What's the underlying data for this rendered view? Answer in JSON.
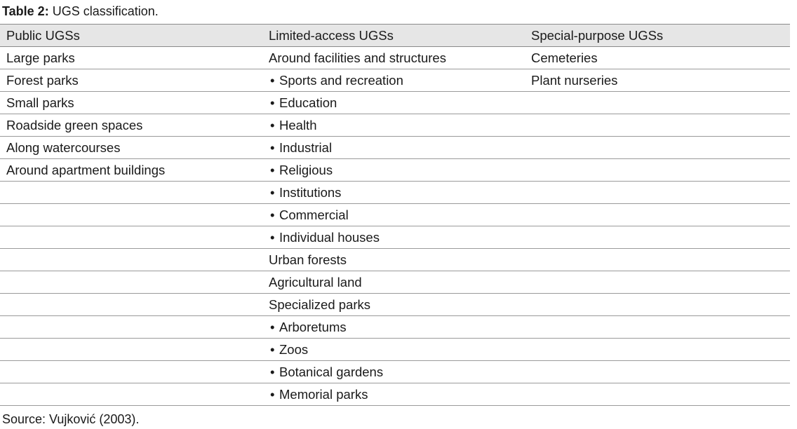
{
  "caption": {
    "label": "Table 2:",
    "text": " UGS classification."
  },
  "table": {
    "headers": [
      "Public UGSs",
      "Limited-access UGSs",
      "Special-purpose UGSs"
    ],
    "bullet_symbol": "•",
    "rows": [
      {
        "public": "Large parks",
        "limited": "Around facilities and structures",
        "limited_bullet": false,
        "special": "Cemeteries"
      },
      {
        "public": "Forest parks",
        "limited": "Sports and recreation",
        "limited_bullet": true,
        "special": "Plant nurseries"
      },
      {
        "public": "Small parks",
        "limited": "Education",
        "limited_bullet": true,
        "special": ""
      },
      {
        "public": "Roadside green spaces",
        "limited": "Health",
        "limited_bullet": true,
        "special": ""
      },
      {
        "public": "Along watercourses",
        "limited": "Industrial",
        "limited_bullet": true,
        "special": ""
      },
      {
        "public": "Around apartment buildings",
        "limited": "Religious",
        "limited_bullet": true,
        "special": ""
      },
      {
        "public": "",
        "limited": "Institutions",
        "limited_bullet": true,
        "special": ""
      },
      {
        "public": "",
        "limited": "Commercial",
        "limited_bullet": true,
        "special": ""
      },
      {
        "public": "",
        "limited": "Individual houses",
        "limited_bullet": true,
        "special": ""
      },
      {
        "public": "",
        "limited": "Urban forests",
        "limited_bullet": false,
        "special": ""
      },
      {
        "public": "",
        "limited": "Agricultural land",
        "limited_bullet": false,
        "special": ""
      },
      {
        "public": "",
        "limited": "Specialized parks",
        "limited_bullet": false,
        "special": ""
      },
      {
        "public": "",
        "limited": "Arboretums",
        "limited_bullet": true,
        "special": ""
      },
      {
        "public": "",
        "limited": "Zoos",
        "limited_bullet": true,
        "special": ""
      },
      {
        "public": "",
        "limited": "Botanical gardens",
        "limited_bullet": true,
        "special": ""
      },
      {
        "public": "",
        "limited": "Memorial parks",
        "limited_bullet": true,
        "special": ""
      }
    ]
  },
  "source": "Source: Vujković (2003)."
}
